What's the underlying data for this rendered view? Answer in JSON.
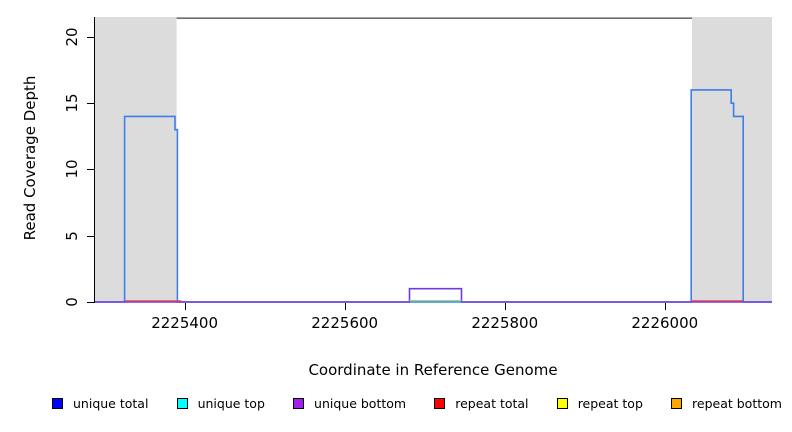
{
  "chart_data": {
    "type": "line",
    "title": "",
    "xlabel": "Coordinate in Reference Genome",
    "ylabel": "Read Coverage Depth",
    "xlim": [
      2225288,
      2226134
    ],
    "ylim": [
      0,
      21.5
    ],
    "x_ticks": [
      2225400,
      2225600,
      2225800,
      2226000
    ],
    "y_ticks": [
      0,
      5,
      10,
      15,
      20
    ],
    "grid": false,
    "legend_position": "bottom",
    "band_color": "#DCDCDC",
    "frame_color": "#6E6E6E",
    "shaded_regions": [
      [
        2225288,
        2225390
      ],
      [
        2226034,
        2226134
      ]
    ],
    "series": [
      {
        "name": "unique total",
        "legend_color": "#0000FF",
        "line_color": "#3F7DE8",
        "points": [
          [
            2225288,
            0
          ],
          [
            2225325,
            0
          ],
          [
            2225325,
            14
          ],
          [
            2225388,
            14
          ],
          [
            2225388,
            13
          ],
          [
            2225391,
            13
          ],
          [
            2225391,
            0
          ],
          [
            2226033,
            0
          ],
          [
            2226033,
            16
          ],
          [
            2226083,
            16
          ],
          [
            2226083,
            15
          ],
          [
            2226086,
            15
          ],
          [
            2226086,
            14
          ],
          [
            2226098,
            14
          ],
          [
            2226098,
            0
          ],
          [
            2226134,
            0
          ]
        ]
      },
      {
        "name": "unique top",
        "legend_color": "#00FFFF",
        "line_color": "#00FFFF",
        "points": []
      },
      {
        "name": "unique bottom",
        "legend_color": "#A020F0",
        "line_color": "#6F3BE3",
        "points": [
          [
            2225288,
            0
          ],
          [
            2225681,
            0
          ],
          [
            2225681,
            1
          ],
          [
            2225746,
            1
          ],
          [
            2225746,
            0
          ],
          [
            2226134,
            0
          ]
        ]
      },
      {
        "name": "repeat total",
        "legend_color": "#FF0000",
        "line_color": "#EE4444",
        "points": [],
        "zero_segments": [
          [
            2225325,
            2225396
          ],
          [
            2226033,
            2226098
          ]
        ]
      },
      {
        "name": "repeat top",
        "legend_color": "#FFFF00",
        "line_color": "#FFFF00",
        "points": []
      },
      {
        "name": "repeat bottom",
        "legend_color": "#FFA500",
        "line_color": "#FFA500",
        "points": []
      }
    ],
    "overlap_segment_at_zero": {
      "color": "#8FD894",
      "range": [
        2225681,
        2225746
      ]
    }
  },
  "axes": {
    "xlabel": "Coordinate in Reference Genome",
    "ylabel": "Read Coverage Depth"
  },
  "legend": {
    "items": [
      {
        "label": "unique total",
        "color": "#0000FF"
      },
      {
        "label": "unique top",
        "color": "#00FFFF"
      },
      {
        "label": "unique bottom",
        "color": "#A020F0"
      },
      {
        "label": "repeat total",
        "color": "#FF0000"
      },
      {
        "label": "repeat top",
        "color": "#FFFF00"
      },
      {
        "label": "repeat bottom",
        "color": "#FFA500"
      }
    ]
  }
}
